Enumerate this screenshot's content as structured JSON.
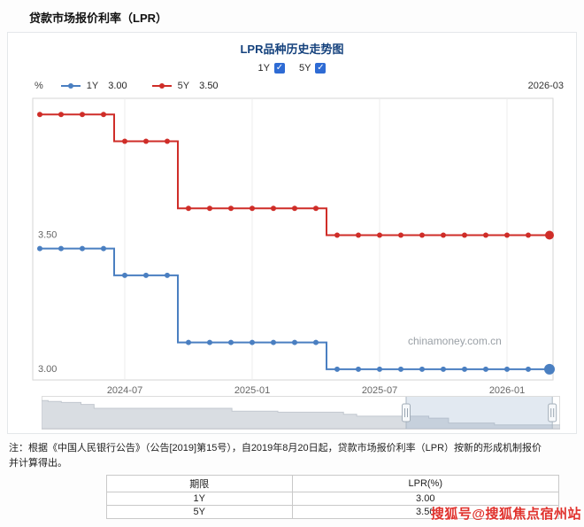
{
  "page": {
    "header_title": "贷款市场报价利率（LPR）",
    "note_line1": "注：根据《中国人民银行公告》（公告[2019]第15号），自2019年8月20日起，贷款市场报价利率（LPR）按新的形成机制报价",
    "note_line2": "并计算得出。",
    "watermark_red": "搜狐号@搜狐焦点宿州站"
  },
  "chart_header": {
    "title": "LPR品种历史走势图",
    "checkboxes": [
      {
        "label": "1Y",
        "checked": true
      },
      {
        "label": "5Y",
        "checked": true
      }
    ],
    "unit": "%",
    "legend": [
      {
        "name": "1Y",
        "value": "3.00",
        "color": "#4a7fc1"
      },
      {
        "name": "5Y",
        "value": "3.50",
        "color": "#cf2d28"
      }
    ],
    "date_label": "2026-03"
  },
  "chart_data": {
    "type": "line",
    "step": "middle",
    "title": "LPR品种历史走势图",
    "x": [
      "2024-03",
      "2024-04",
      "2024-05",
      "2024-06",
      "2024-07",
      "2024-08",
      "2024-09",
      "2024-10",
      "2024-11",
      "2024-12",
      "2025-01",
      "2025-02",
      "2025-03",
      "2025-04",
      "2025-05",
      "2025-06",
      "2025-07",
      "2025-08",
      "2025-09",
      "2025-10",
      "2025-11",
      "2025-12",
      "2026-01",
      "2026-02",
      "2026-03"
    ],
    "series": [
      {
        "name": "1Y",
        "color": "#4a7fc1",
        "values": [
          3.45,
          3.45,
          3.45,
          3.45,
          3.35,
          3.35,
          3.35,
          3.1,
          3.1,
          3.1,
          3.1,
          3.1,
          3.1,
          3.1,
          3.0,
          3.0,
          3.0,
          3.0,
          3.0,
          3.0,
          3.0,
          3.0,
          3.0,
          3.0,
          3.0
        ]
      },
      {
        "name": "5Y",
        "color": "#cf2d28",
        "values": [
          3.95,
          3.95,
          3.95,
          3.95,
          3.85,
          3.85,
          3.85,
          3.6,
          3.6,
          3.6,
          3.6,
          3.6,
          3.6,
          3.6,
          3.5,
          3.5,
          3.5,
          3.5,
          3.5,
          3.5,
          3.5,
          3.5,
          3.5,
          3.5,
          3.5
        ]
      }
    ],
    "x_tick_labels": [
      "2024-07",
      "2025-01",
      "2025-07",
      "2026-01"
    ],
    "x_tick_indices": [
      4,
      10,
      16,
      22
    ],
    "y_ticks": [
      {
        "label": "3.50",
        "value": 3.5
      },
      {
        "label": "3.00",
        "value": 3.0
      }
    ],
    "ylim": [
      2.96,
      4.01
    ],
    "grid": true,
    "legend_position": "top-left",
    "watermark": "chinamoney.com.cn",
    "navigator": {
      "start_pct": 70.3,
      "end_pct": 98.5,
      "total_months": 79,
      "profile_points": [
        [
          0,
          4.25
        ],
        [
          1,
          4.2
        ],
        [
          3,
          4.15
        ],
        [
          6,
          4.05
        ],
        [
          8,
          3.85
        ],
        [
          29,
          3.7
        ],
        [
          36,
          3.65
        ],
        [
          46,
          3.55
        ],
        [
          48,
          3.45
        ],
        [
          59,
          3.35
        ],
        [
          62,
          3.1
        ],
        [
          69,
          3.0
        ]
      ]
    }
  },
  "table": {
    "headers": [
      "期限",
      "LPR(%)"
    ],
    "rows": [
      [
        "1Y",
        "3.00"
      ],
      [
        "5Y",
        "3.50"
      ]
    ]
  }
}
